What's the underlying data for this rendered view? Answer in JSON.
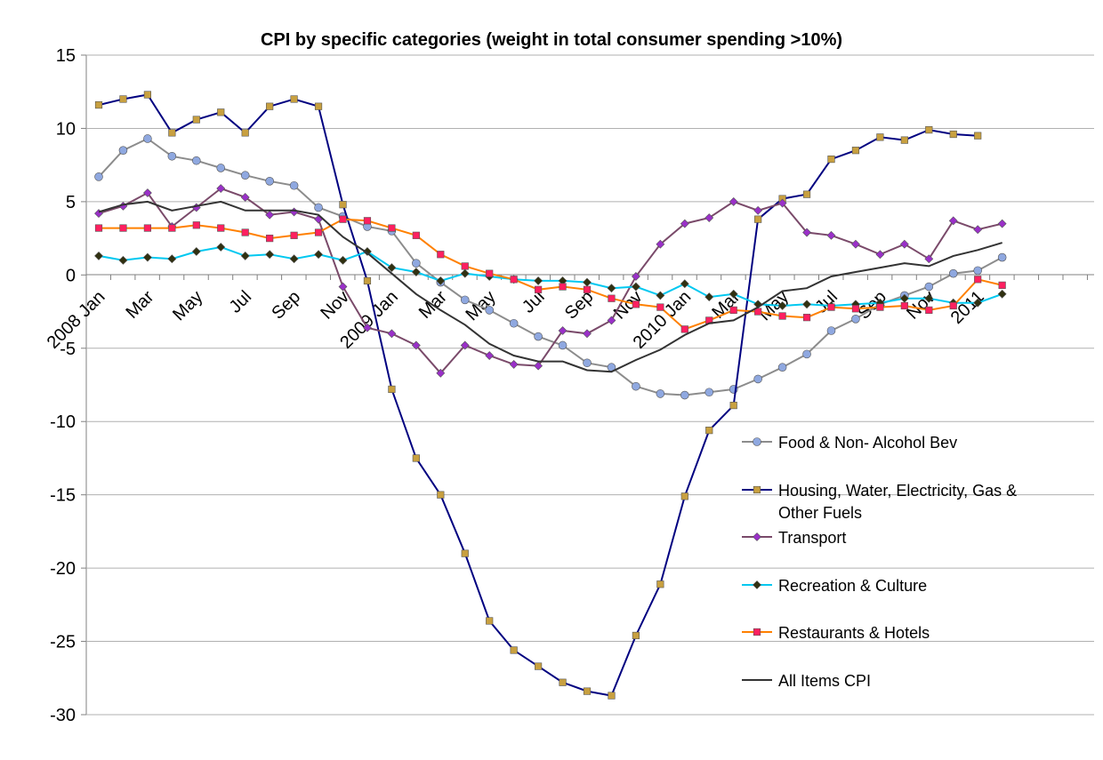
{
  "chart_data": {
    "type": "line",
    "title": "CPI by specific categories (weight in total consumer spending >10%)",
    "xlabel": "",
    "ylabel": "",
    "ylim": [
      -30,
      15
    ],
    "yticks": [
      15,
      10,
      5,
      0,
      -5,
      -10,
      -15,
      -20,
      -25,
      -30
    ],
    "x_tick_labels": [
      "2008 Jan",
      "Mar",
      "May",
      "Jul",
      "Sep",
      "Nov",
      "2009 Jan",
      "Mar",
      "May",
      "Jul",
      "Sep",
      "Nov",
      "2010 Jan",
      "Mar",
      "May",
      "Jul",
      "Sep",
      "Nov",
      "2011"
    ],
    "num_points": 38,
    "legend_position": "right",
    "series": [
      {
        "name": "Food &  Non- Alcohol Bev",
        "color": "#8c8c8c",
        "marker": "circle",
        "marker_color": "#8fa8e0",
        "values": [
          6.7,
          8.5,
          9.3,
          8.1,
          7.8,
          7.3,
          6.8,
          6.4,
          6.1,
          4.6,
          4.0,
          3.3,
          3.0,
          0.8,
          -0.5,
          -1.7,
          -2.4,
          -3.3,
          -4.2,
          -4.8,
          -6.0,
          -6.3,
          -7.6,
          -8.1,
          -8.2,
          -8.0,
          -7.8,
          -7.1,
          -6.3,
          -5.4,
          -3.8,
          -3.0,
          -2.0,
          -1.4,
          -0.8,
          0.1,
          0.3,
          1.2
        ]
      },
      {
        "name": "Housing,  Water,  Electricity,  Gas & Other Fuels",
        "color": "#000080",
        "marker": "square",
        "marker_color": "#c8a040",
        "values": [
          11.6,
          12.0,
          12.3,
          9.7,
          10.6,
          11.1,
          9.7,
          11.5,
          12.0,
          11.5,
          4.8,
          -0.4,
          -7.8,
          -12.5,
          -15.0,
          -19.0,
          -23.6,
          -25.6,
          -26.7,
          -27.8,
          -28.4,
          -28.7,
          -24.6,
          -21.1,
          -15.1,
          -10.6,
          -8.9,
          3.8,
          5.2,
          5.5,
          7.9,
          8.5,
          9.4,
          9.2,
          9.9,
          9.6,
          9.5,
          null
        ]
      },
      {
        "name": "Transport",
        "color": "#7a4a6a",
        "marker": "diamond",
        "marker_color": "#9a30c8",
        "values": [
          4.2,
          4.7,
          5.6,
          3.3,
          4.6,
          5.9,
          5.3,
          4.1,
          4.3,
          3.8,
          -0.8,
          -3.6,
          -4.0,
          -4.8,
          -6.7,
          -4.8,
          -5.5,
          -6.1,
          -6.2,
          -3.8,
          -4.0,
          -3.1,
          -0.1,
          2.1,
          3.5,
          3.9,
          5.0,
          4.4,
          4.9,
          2.9,
          2.7,
          2.1,
          1.4,
          2.1,
          1.1,
          3.7,
          3.1,
          3.5
        ]
      },
      {
        "name": "Recreation  & Culture",
        "color": "#00c8f0",
        "marker": "diamond",
        "marker_color": "#303010",
        "values": [
          1.3,
          1.0,
          1.2,
          1.1,
          1.6,
          1.9,
          1.3,
          1.4,
          1.1,
          1.4,
          1.0,
          1.6,
          0.5,
          0.2,
          -0.4,
          0.1,
          -0.1,
          -0.3,
          -0.4,
          -0.4,
          -0.5,
          -0.9,
          -0.8,
          -1.4,
          -0.6,
          -1.5,
          -1.3,
          -2.0,
          -2.1,
          -2.0,
          -2.1,
          -2.0,
          -1.9,
          -1.6,
          -1.6,
          -1.9,
          -1.9,
          -1.3
        ]
      },
      {
        "name": "Restaurants & Hotels",
        "color": "#ff8000",
        "marker": "square",
        "marker_color": "#ff2060",
        "values": [
          3.2,
          3.2,
          3.2,
          3.2,
          3.4,
          3.2,
          2.9,
          2.5,
          2.7,
          2.9,
          3.8,
          3.7,
          3.2,
          2.7,
          1.4,
          0.6,
          0.1,
          -0.3,
          -1.0,
          -0.8,
          -1.0,
          -1.6,
          -2.0,
          -2.2,
          -3.7,
          -3.1,
          -2.4,
          -2.5,
          -2.8,
          -2.9,
          -2.2,
          -2.3,
          -2.2,
          -2.1,
          -2.4,
          -2.1,
          -0.3,
          -0.7
        ]
      },
      {
        "name": "All  Items  CPI",
        "color": "#333333",
        "marker": "none",
        "marker_color": "#333333",
        "values": [
          4.3,
          4.8,
          5.0,
          4.4,
          4.7,
          5.0,
          4.4,
          4.4,
          4.4,
          4.1,
          2.6,
          1.5,
          0.1,
          -1.3,
          -2.4,
          -3.4,
          -4.7,
          -5.5,
          -5.9,
          -5.9,
          -6.5,
          -6.6,
          -5.8,
          -5.1,
          -4.1,
          -3.3,
          -3.1,
          -2.2,
          -1.1,
          -0.9,
          -0.1,
          0.2,
          0.5,
          0.8,
          0.6,
          1.3,
          1.7,
          2.2
        ]
      }
    ]
  }
}
